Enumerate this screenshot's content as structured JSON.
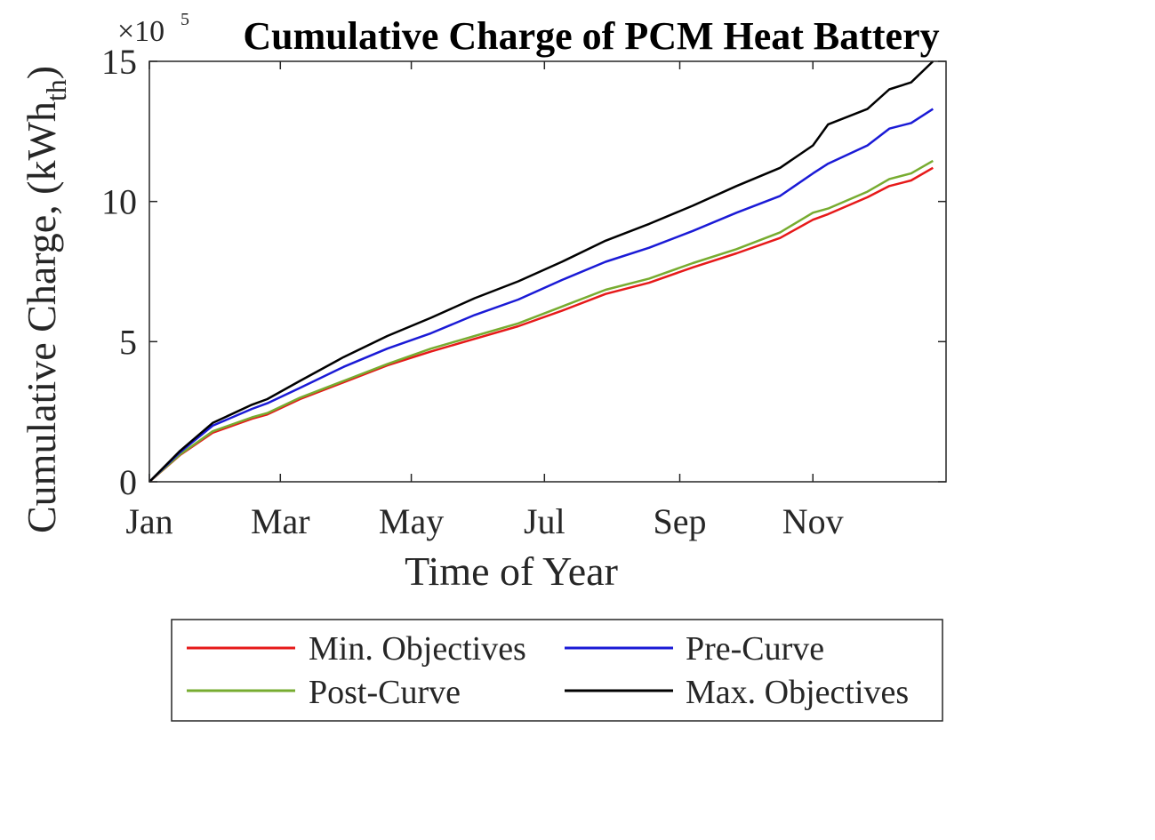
{
  "chart_data": {
    "type": "line",
    "title": "Cumulative Charge of PCM Heat Battery",
    "xlabel": "Time of Year",
    "ylabel_main": "Cumulative Charge, (kWh",
    "ylabel_sub": "th",
    "ylabel_close": ")",
    "y_exponent_prefix": "×10",
    "y_exponent": "5",
    "ylim": [
      0,
      15
    ],
    "y_ticks": [
      0,
      5,
      10,
      15
    ],
    "xlim": [
      1,
      366
    ],
    "x_ticks": [
      {
        "day": 1,
        "label": "Jan"
      },
      {
        "day": 61,
        "label": "Mar"
      },
      {
        "day": 121,
        "label": "May"
      },
      {
        "day": 182,
        "label": "Jul"
      },
      {
        "day": 244,
        "label": "Sep"
      },
      {
        "day": 305,
        "label": "Nov"
      }
    ],
    "grid": false,
    "legend_position": "bottom-outside",
    "x_days": [
      1,
      15,
      30,
      48,
      55,
      70,
      90,
      110,
      130,
      150,
      170,
      190,
      210,
      230,
      250,
      270,
      290,
      305,
      312,
      330,
      340,
      350,
      360
    ],
    "series": [
      {
        "name": "Min. Objectives",
        "color": "#e61919",
        "values": [
          0,
          0.95,
          1.75,
          2.25,
          2.4,
          2.95,
          3.55,
          4.15,
          4.65,
          5.1,
          5.55,
          6.1,
          6.7,
          7.1,
          7.65,
          8.15,
          8.7,
          9.35,
          9.55,
          10.15,
          10.55,
          10.75,
          11.2
        ]
      },
      {
        "name": "Post-Curve",
        "color": "#77ac30",
        "values": [
          0,
          0.97,
          1.8,
          2.3,
          2.45,
          3.0,
          3.6,
          4.2,
          4.75,
          5.2,
          5.65,
          6.25,
          6.85,
          7.25,
          7.8,
          8.3,
          8.9,
          9.6,
          9.75,
          10.35,
          10.8,
          11.0,
          11.45
        ]
      },
      {
        "name": "Pre-Curve",
        "color": "#1a1ad6",
        "values": [
          0,
          1.05,
          2.0,
          2.6,
          2.8,
          3.35,
          4.1,
          4.75,
          5.3,
          5.95,
          6.5,
          7.2,
          7.85,
          8.35,
          8.95,
          9.6,
          10.2,
          11.0,
          11.35,
          12.0,
          12.6,
          12.8,
          13.3
        ]
      },
      {
        "name": "Max. Objectives",
        "color": "#000000",
        "values": [
          0,
          1.1,
          2.1,
          2.75,
          2.95,
          3.6,
          4.45,
          5.2,
          5.85,
          6.55,
          7.15,
          7.85,
          8.6,
          9.2,
          9.85,
          10.55,
          11.2,
          12.0,
          12.75,
          13.3,
          14.0,
          14.25,
          15.0
        ]
      }
    ]
  }
}
